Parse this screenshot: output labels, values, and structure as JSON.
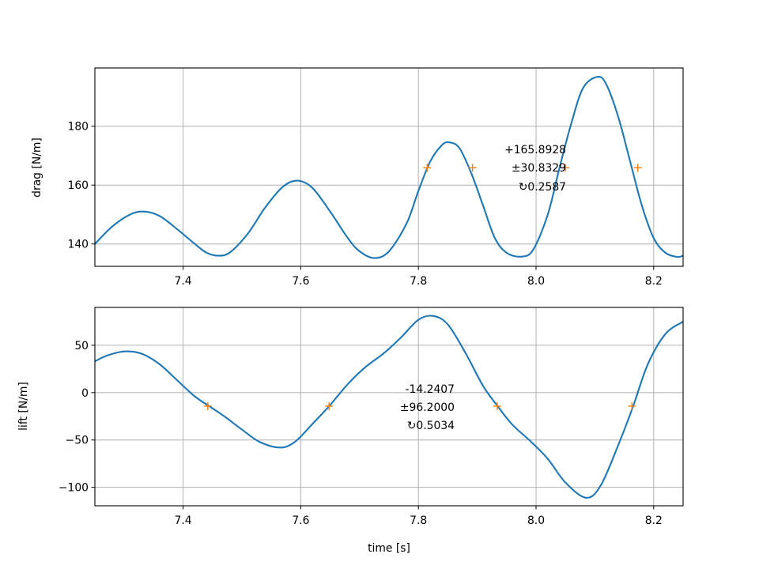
{
  "chart_data": [
    {
      "type": "line",
      "title": "",
      "xlabel": "",
      "ylabel": "drag [N/m]",
      "xlim": [
        7.25,
        8.25
      ],
      "ylim": [
        132.4,
        199.8
      ],
      "grid": true,
      "xticks": [
        7.4,
        7.6,
        7.8,
        8.0,
        8.2
      ],
      "xtick_labels": [
        "7.4",
        "7.6",
        "7.8",
        "8.0",
        "8.2"
      ],
      "yticks": [
        140,
        160,
        180
      ],
      "ytick_labels": [
        "140",
        "160",
        "180"
      ],
      "series": [
        {
          "color": "#1f77b4",
          "x": [
            7.25,
            7.28,
            7.31,
            7.333,
            7.36,
            7.39,
            7.42,
            7.44,
            7.46,
            7.48,
            7.51,
            7.54,
            7.57,
            7.595,
            7.62,
            7.65,
            7.68,
            7.7,
            7.725,
            7.75,
            7.78,
            7.8,
            7.82,
            7.84,
            7.853,
            7.87,
            7.89,
            7.91,
            7.93,
            7.95,
            7.975,
            7.995,
            8.02,
            8.04,
            8.06,
            8.08,
            8.105,
            8.12,
            8.14,
            8.16,
            8.18,
            8.2,
            8.22,
            8.24,
            8.25
          ],
          "values": [
            140,
            146,
            150,
            151,
            149.5,
            145,
            140,
            137,
            136,
            137.2,
            143.5,
            152.5,
            159.5,
            161.5,
            159,
            151,
            142,
            137.5,
            135.2,
            137.5,
            147,
            158,
            168,
            173.6,
            174.5,
            172.5,
            164,
            153,
            142,
            137,
            135.7,
            138,
            150,
            166,
            181,
            193,
            196.8,
            194,
            183,
            168,
            153,
            142,
            137,
            135.6,
            136
          ]
        }
      ],
      "markers": {
        "color": "#ff7f0e",
        "symbol": "+",
        "x": [
          7.815,
          7.892,
          8.05,
          8.173
        ],
        "y": [
          165.8928,
          165.8928,
          165.8928,
          165.8928
        ]
      },
      "annotation": [
        "+165.8928",
        "±30.8329",
        "↻0.2587"
      ]
    },
    {
      "type": "line",
      "title": "",
      "xlabel": "time [s]",
      "ylabel": "lift [N/m]",
      "xlim": [
        7.25,
        8.25
      ],
      "ylim": [
        -119.5,
        90
      ],
      "grid": true,
      "xticks": [
        7.4,
        7.6,
        7.8,
        8.0,
        8.2
      ],
      "xtick_labels": [
        "7.4",
        "7.6",
        "7.8",
        "8.0",
        "8.2"
      ],
      "yticks": [
        50,
        0,
        -50,
        -100
      ],
      "ytick_labels": [
        "50",
        "0",
        "−50",
        "−100"
      ],
      "series": [
        {
          "color": "#1f77b4",
          "x": [
            7.25,
            7.27,
            7.3,
            7.33,
            7.36,
            7.39,
            7.42,
            7.445,
            7.47,
            7.5,
            7.53,
            7.565,
            7.59,
            7.62,
            7.648,
            7.68,
            7.71,
            7.74,
            7.77,
            7.8,
            7.825,
            7.85,
            7.88,
            7.91,
            7.935,
            7.96,
            7.99,
            8.02,
            8.05,
            8.085,
            8.11,
            8.14,
            8.165,
            8.19,
            8.22,
            8.25
          ],
          "values": [
            33,
            39,
            43.5,
            41,
            30,
            13,
            -4,
            -14.5,
            -25,
            -39,
            -52,
            -58,
            -52,
            -33,
            -14.5,
            9,
            27,
            41,
            58,
            77,
            81,
            72,
            42,
            7,
            -14.5,
            -34,
            -51,
            -70,
            -95,
            -111,
            -98,
            -55,
            -14.5,
            30,
            62,
            75
          ]
        }
      ],
      "markers": {
        "color": "#ff7f0e",
        "symbol": "+",
        "x": [
          7.442,
          7.648,
          7.934,
          8.163
        ],
        "y": [
          -14.2407,
          -14.2407,
          -14.2407,
          -14.2407
        ]
      },
      "annotation": [
        "-14.2407",
        "±96.2000",
        "↻0.5034"
      ]
    }
  ]
}
